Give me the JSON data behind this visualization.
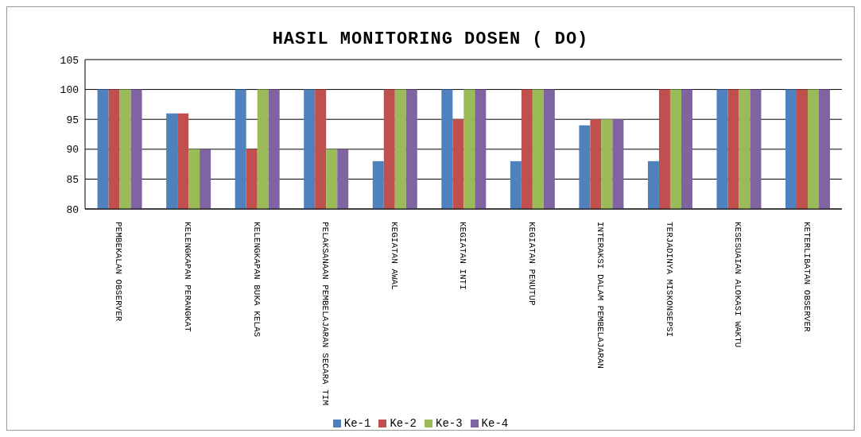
{
  "chart_data": {
    "type": "bar",
    "title": "HASIL MONITORING DOSEN ( DO)",
    "categories": [
      "PEMBEKALAN OBSERVER",
      "KELENGKAPAN PERANGKAT",
      "KELENGKAPAN BUKA KELAS",
      "PELAKSANAAN PEMBELAJARAN SECARA TIM",
      "KEGIATAN AWAL",
      "KEGIATAN INTI",
      "KEGIATAN PENUTUP",
      "INTERAKSI DALAM PEMBELAJARAN",
      "TERJADINYA MISKONSEPSI",
      "KESESUAIAN ALOKASI WAKTU",
      "KETERLIBATAN OBSERVER"
    ],
    "series": [
      {
        "name": "Ke-1",
        "color": "#4f81bd",
        "values": [
          100,
          96,
          100,
          100,
          88,
          100,
          88,
          94,
          88,
          100,
          100
        ]
      },
      {
        "name": "Ke-2",
        "color": "#c0504d",
        "values": [
          100,
          96,
          90,
          100,
          100,
          95,
          100,
          95,
          100,
          100,
          100
        ]
      },
      {
        "name": "Ke-3",
        "color": "#9bbb59",
        "values": [
          100,
          90,
          100,
          90,
          100,
          100,
          100,
          95,
          100,
          100,
          100
        ]
      },
      {
        "name": "Ke-4",
        "color": "#8064a2",
        "values": [
          100,
          90,
          100,
          90,
          100,
          100,
          100,
          95,
          100,
          100,
          100
        ]
      }
    ],
    "ylim": [
      80,
      105
    ],
    "yticks": [
      80,
      85,
      90,
      95,
      100,
      105
    ],
    "grid": "y",
    "legend": "bottom"
  }
}
